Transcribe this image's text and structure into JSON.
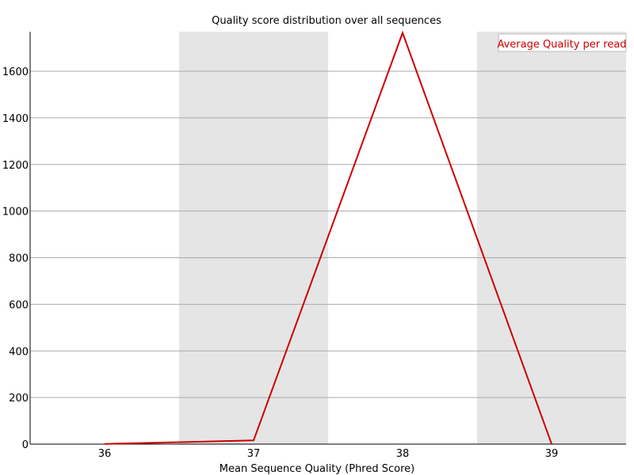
{
  "chart_data": {
    "type": "line",
    "title": "Quality score distribution over all sequences",
    "xlabel": "Mean Sequence Quality (Phred Score)",
    "ylabel": "",
    "x": [
      36,
      37,
      38,
      39
    ],
    "xlim": [
      35.5,
      39.5
    ],
    "ylim": [
      0,
      1770
    ],
    "yticks": [
      0,
      200,
      400,
      600,
      800,
      1000,
      1200,
      1400,
      1600
    ],
    "grid": true,
    "alternating_bands": true,
    "legend_position": "top-right",
    "series": [
      {
        "name": "Average Quality per read",
        "color": "#cc0000",
        "values": [
          1,
          16,
          1765,
          1
        ]
      }
    ]
  }
}
